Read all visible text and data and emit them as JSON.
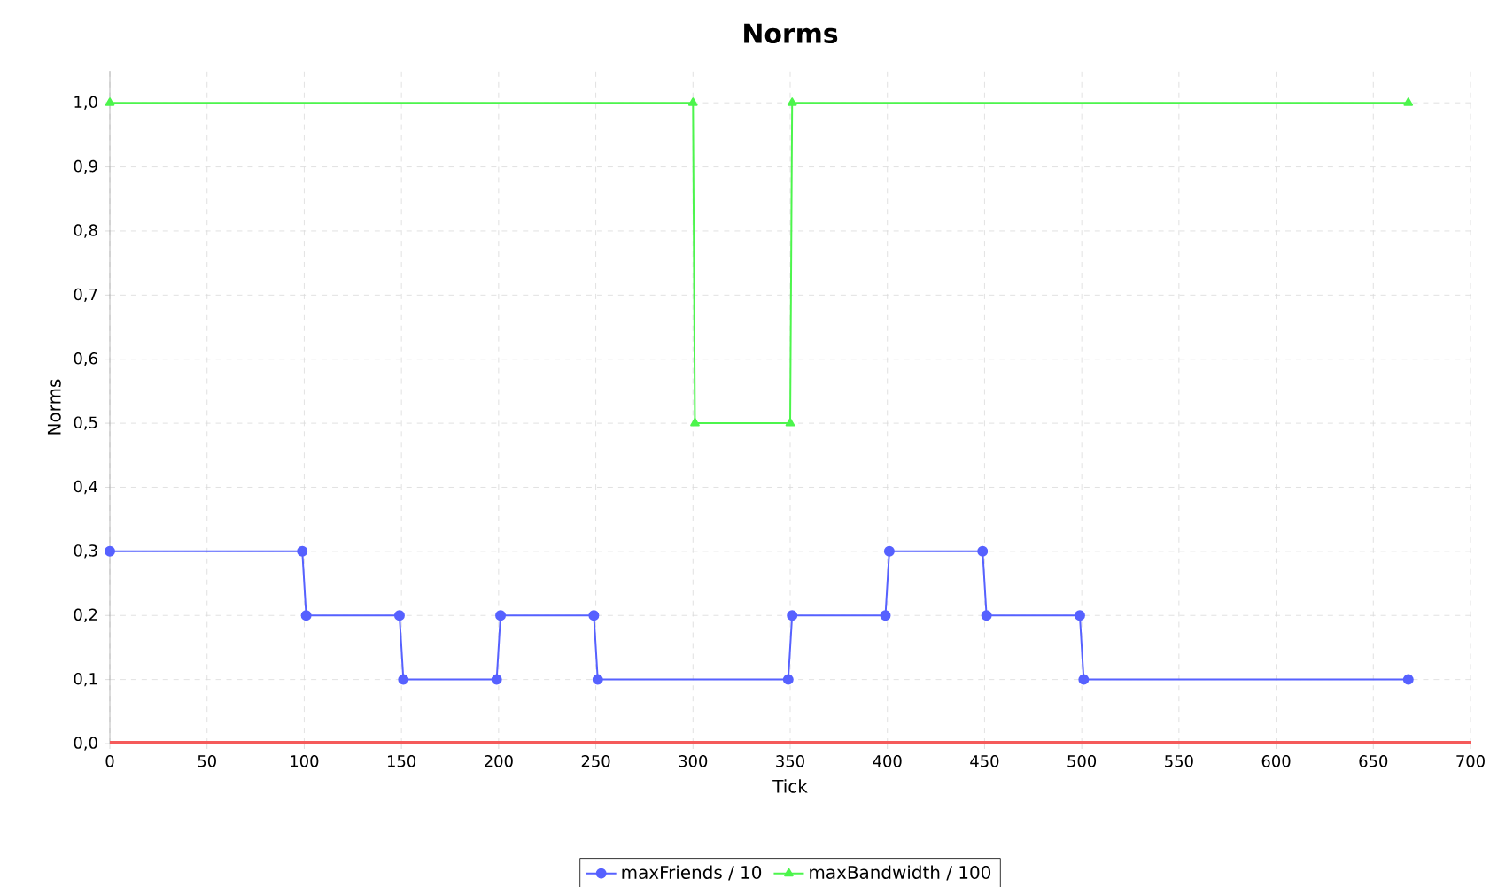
{
  "chart_data": {
    "type": "line",
    "title": "Norms",
    "xlabel": "Tick",
    "ylabel": "Norms",
    "xlim": [
      0,
      700
    ],
    "xticks": [
      0,
      50,
      100,
      150,
      200,
      250,
      300,
      350,
      400,
      450,
      500,
      550,
      600,
      650,
      700
    ],
    "ylim": [
      0,
      1.05
    ],
    "yticks": [
      {
        "value": 0,
        "label": "0,0"
      },
      {
        "value": 0.1,
        "label": "0,1"
      },
      {
        "value": 0.2,
        "label": "0,2"
      },
      {
        "value": 0.3,
        "label": "0,3"
      },
      {
        "value": 0.4,
        "label": "0,4"
      },
      {
        "value": 0.5,
        "label": "0,5"
      },
      {
        "value": 0.6,
        "label": "0,6"
      },
      {
        "value": 0.7,
        "label": "0,7"
      },
      {
        "value": 0.8,
        "label": "0,8"
      },
      {
        "value": 0.9,
        "label": "0,9"
      },
      {
        "value": 1.0,
        "label": "1,0"
      }
    ],
    "grid": true,
    "legend": "bottom",
    "series": [
      {
        "name": "maxFriends / 10",
        "color": "#5661ff",
        "marker": "circle",
        "x": [
          0,
          99,
          101,
          149,
          151,
          199,
          201,
          249,
          251,
          349,
          351,
          399,
          401,
          449,
          451,
          499,
          501,
          668
        ],
        "values": [
          0.3,
          0.3,
          0.2,
          0.2,
          0.1,
          0.1,
          0.2,
          0.2,
          0.1,
          0.1,
          0.2,
          0.2,
          0.3,
          0.3,
          0.2,
          0.2,
          0.1,
          0.1
        ]
      },
      {
        "name": "maxBandwidth / 100",
        "color": "#4cf54c",
        "marker": "triangle",
        "x": [
          0,
          300,
          301,
          350,
          351,
          668
        ],
        "values": [
          1.0,
          1.0,
          0.5,
          0.5,
          1.0,
          1.0
        ]
      },
      {
        "color": "#f55a5a",
        "marker": "none",
        "x": [
          0,
          700
        ],
        "values": [
          0,
          0
        ]
      }
    ]
  }
}
